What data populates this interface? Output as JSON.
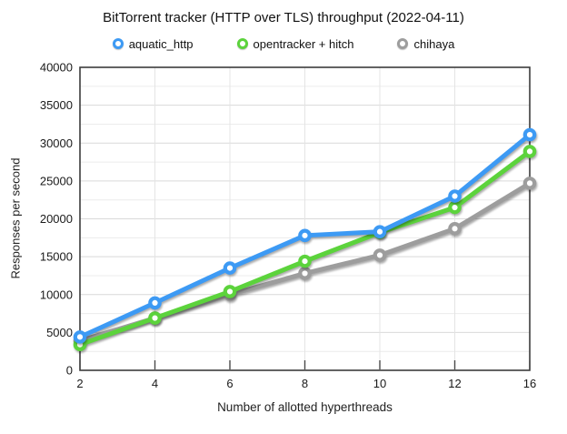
{
  "chart_data": {
    "type": "line",
    "title": "BitTorrent tracker (HTTP over TLS) throughput (2022-04-11)",
    "xlabel": "Number of allotted hyperthreads",
    "ylabel": "Responses per second",
    "categories": [
      "2",
      "4",
      "6",
      "8",
      "10",
      "12",
      "16"
    ],
    "ylim": [
      0,
      40000
    ],
    "ytick_labels": [
      "0",
      "5000",
      "10000",
      "15000",
      "20000",
      "25000",
      "30000",
      "35000",
      "40000"
    ],
    "ytick_step": 5000,
    "yminor_step": 2500,
    "grid": true,
    "legend_position": "top",
    "series": [
      {
        "name": "aquatic_http",
        "color": "#3D9AF4",
        "values": [
          4400,
          8900,
          13500,
          17800,
          18300,
          23000,
          31100
        ]
      },
      {
        "name": "opentracker + hitch",
        "color": "#5CD33C",
        "values": [
          3400,
          6900,
          10400,
          14400,
          18200,
          21500,
          28900
        ]
      },
      {
        "name": "chihaya",
        "color": "#9D9D9D",
        "values": [
          3900,
          6900,
          10000,
          12800,
          15200,
          18700,
          24700
        ]
      }
    ],
    "colors": {
      "frame": "#3c3c3c",
      "major_grid": "#d9d9d9",
      "minor_grid": "#ececec",
      "vertical_grid": "#e4e4e4",
      "tick": "#4a4a4a"
    }
  }
}
